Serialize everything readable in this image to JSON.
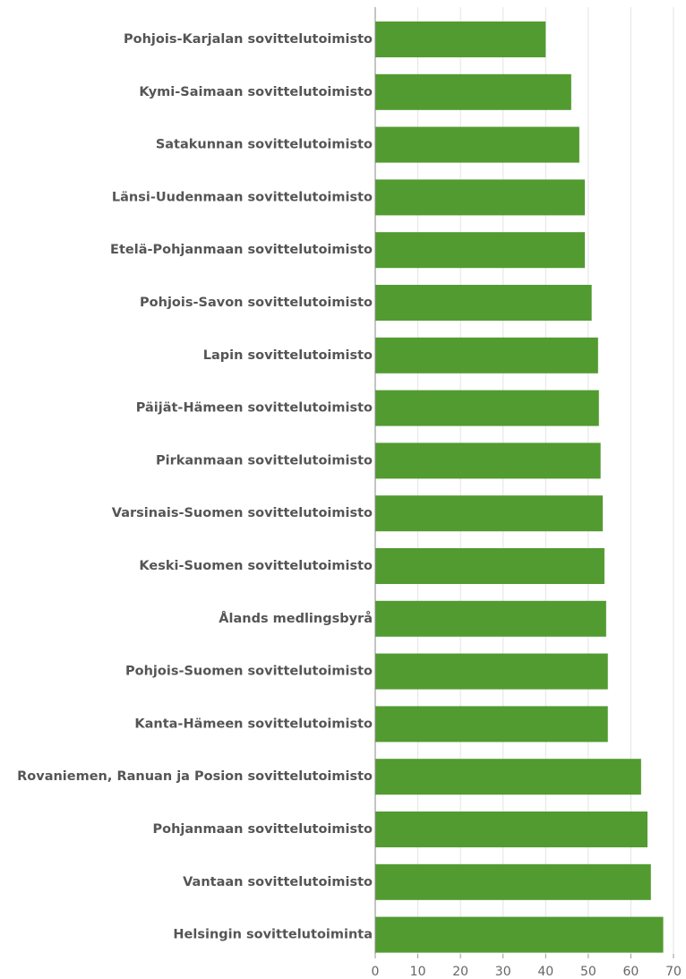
{
  "chart_data": {
    "type": "bar",
    "orientation": "horizontal",
    "categories": [
      "Pohjois-Karjalan sovittelutoimisto",
      "Kymi-Saimaan sovittelutoimisto",
      "Satakunnan sovittelutoimisto",
      "Länsi-Uudenmaan sovittelutoimisto",
      "Etelä-Pohjanmaan sovittelutoimisto",
      "Pohjois-Savon sovittelutoimisto",
      "Lapin sovittelutoimisto",
      "Päijät-Hämeen sovittelutoimisto",
      "Pirkanmaan sovittelutoimisto",
      "Varsinais-Suomen sovittelutoimisto",
      "Keski-Suomen sovittelutoimisto",
      "Ålands medlingsbyrå",
      "Pohjois-Suomen sovittelutoimisto",
      "Kanta-Hämeen sovittelutoimisto",
      "Rovaniemen, Ranuan ja Posion sovittelutoimisto",
      "Pohjanmaan sovittelutoimisto",
      "Vantaan sovittelutoimisto",
      "Helsingin sovittelutoiminta"
    ],
    "values": [
      40.0,
      46.0,
      47.9,
      49.2,
      49.2,
      50.8,
      52.3,
      52.5,
      52.9,
      53.4,
      53.8,
      54.2,
      54.6,
      54.6,
      62.4,
      63.9,
      64.7,
      67.6
    ],
    "color": "#529b30",
    "xlim": [
      0,
      70
    ],
    "xticks": [
      0,
      10,
      20,
      30,
      40,
      50,
      60,
      70
    ],
    "grid": true
  }
}
